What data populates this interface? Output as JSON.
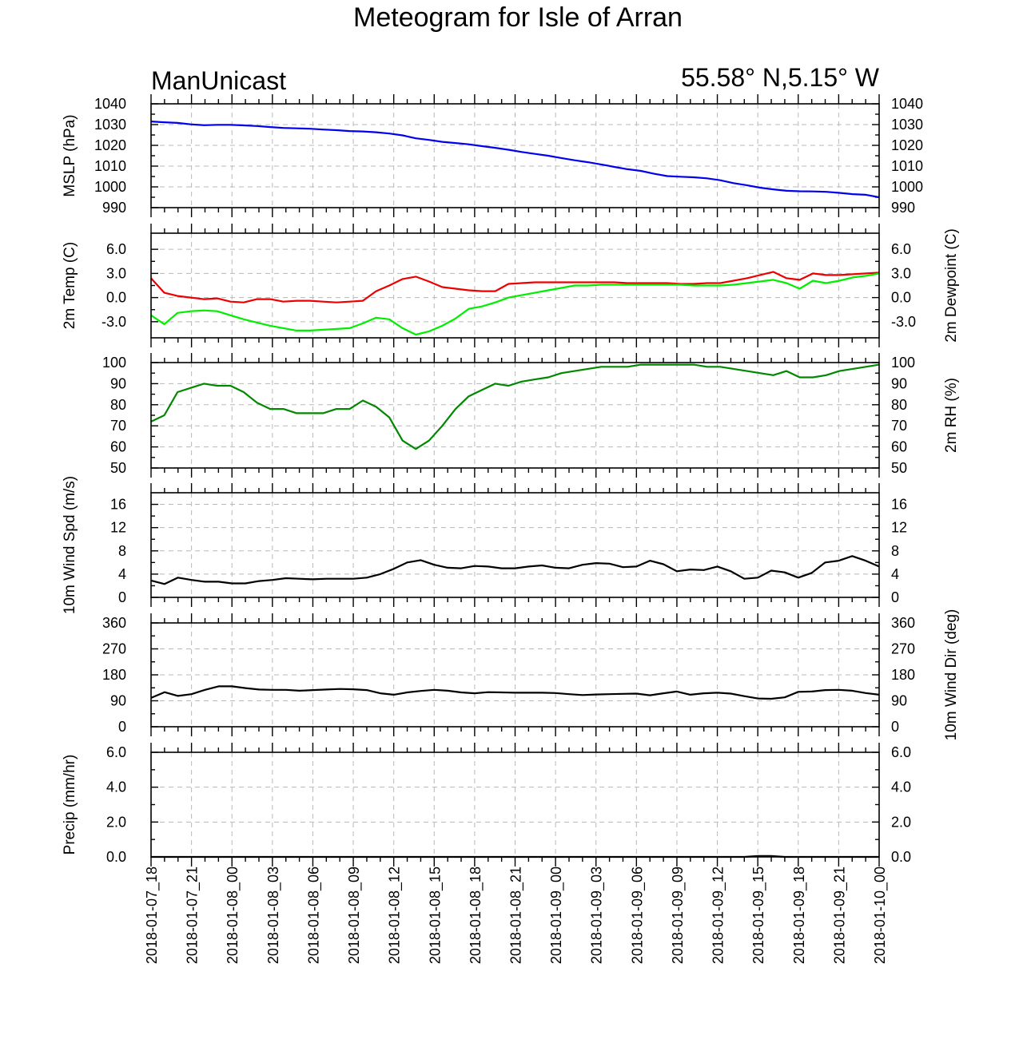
{
  "header": {
    "title": "Meteogram for Isle of Arran",
    "source": "ManUnicast",
    "location": "55.58° N,5.15° W"
  },
  "chart_data": [
    {
      "type": "line",
      "ylabel": "MSLP (hPa)",
      "ylabel_right": "",
      "ylim": [
        990,
        1040
      ],
      "yticks": [
        990,
        1000,
        1010,
        1020,
        1030,
        1040
      ],
      "ytick_labels": [
        "990",
        "1000",
        "1010",
        "1020",
        "1030",
        "1040"
      ],
      "series": [
        {
          "color": "#0000ee",
          "values": [
            1031.5,
            1031.1,
            1030.8,
            1030.1,
            1029.7,
            1029.9,
            1029.9,
            1029.6,
            1029.3,
            1028.8,
            1028.4,
            1028.2,
            1028.0,
            1027.6,
            1027.3,
            1026.9,
            1026.7,
            1026.3,
            1025.7,
            1024.8,
            1023.4,
            1022.6,
            1021.7,
            1021.1,
            1020.5,
            1019.6,
            1018.8,
            1017.9,
            1016.8,
            1015.9,
            1015.0,
            1013.9,
            1012.8,
            1011.9,
            1010.8,
            1009.6,
            1008.5,
            1007.7,
            1006.3,
            1005.2,
            1004.9,
            1004.6,
            1004.1,
            1003.2,
            1001.8,
            1000.8,
            999.6,
            998.8,
            998.1,
            997.9,
            997.8,
            997.6,
            997.1,
            996.5,
            996.2,
            995.0
          ]
        }
      ]
    },
    {
      "type": "line",
      "ylabel": "2m Temp (C)",
      "ylabel_right": "2m Dewpoint (C)",
      "ylim": [
        -5,
        8
      ],
      "yticks": [
        -3,
        0,
        3,
        6
      ],
      "ytick_labels": [
        "-3.0",
        "0.0",
        "3.0",
        "6.0"
      ],
      "series": [
        {
          "color": "#ee0000",
          "values": [
            2.4,
            0.6,
            0.2,
            0.0,
            -0.2,
            -0.1,
            -0.5,
            -0.6,
            -0.2,
            -0.2,
            -0.5,
            -0.4,
            -0.4,
            -0.5,
            -0.6,
            -0.5,
            -0.4,
            0.8,
            1.5,
            2.3,
            2.6,
            2.0,
            1.3,
            1.1,
            0.9,
            0.8,
            0.8,
            1.7,
            1.8,
            1.9,
            1.9,
            1.9,
            1.9,
            1.9,
            1.9,
            1.9,
            1.8,
            1.8,
            1.8,
            1.8,
            1.7,
            1.7,
            1.8,
            1.8,
            2.1,
            2.4,
            2.8,
            3.2,
            2.4,
            2.2,
            3.0,
            2.8,
            2.8,
            2.9,
            3.0,
            3.1
          ]
        },
        {
          "color": "#00ee00",
          "values": [
            -2.2,
            -3.3,
            -1.9,
            -1.7,
            -1.6,
            -1.7,
            -2.2,
            -2.7,
            -3.1,
            -3.5,
            -3.8,
            -4.1,
            -4.1,
            -4.0,
            -3.9,
            -3.8,
            -3.2,
            -2.5,
            -2.7,
            -3.8,
            -4.6,
            -4.2,
            -3.5,
            -2.6,
            -1.4,
            -1.1,
            -0.6,
            0.0,
            0.3,
            0.6,
            0.9,
            1.2,
            1.5,
            1.5,
            1.6,
            1.6,
            1.6,
            1.6,
            1.6,
            1.6,
            1.6,
            1.5,
            1.5,
            1.5,
            1.6,
            1.8,
            2.0,
            2.2,
            1.8,
            1.1,
            2.1,
            1.8,
            2.1,
            2.5,
            2.7,
            3.0
          ]
        }
      ]
    },
    {
      "type": "line",
      "ylabel": "",
      "ylabel_right": "2m RH (%)",
      "ylim": [
        50,
        100
      ],
      "yticks": [
        50,
        60,
        70,
        80,
        90,
        100
      ],
      "ytick_labels": [
        "50",
        "60",
        "70",
        "80",
        "90",
        "100"
      ],
      "series": [
        {
          "color": "#008800",
          "values": [
            72,
            75,
            86,
            88,
            90,
            89,
            89,
            86,
            81,
            78,
            78,
            76,
            76,
            76,
            78,
            78,
            82,
            79,
            74,
            63,
            59,
            63,
            70,
            78,
            84,
            87,
            90,
            89,
            91,
            92,
            93,
            95,
            96,
            97,
            98,
            98,
            98,
            99,
            99,
            99,
            99,
            99,
            98,
            98,
            97,
            96,
            95,
            94,
            96,
            93,
            93,
            94,
            96,
            97,
            98,
            99
          ]
        }
      ]
    },
    {
      "type": "line",
      "ylabel": "10m Wind Spd (m/s)",
      "ylabel_right": "",
      "ylim": [
        0,
        18
      ],
      "yticks": [
        0,
        4,
        8,
        12,
        16
      ],
      "ytick_labels": [
        "0",
        "4",
        "8",
        "12",
        "16"
      ],
      "series": [
        {
          "color": "#000000",
          "values": [
            2.9,
            2.3,
            3.4,
            3.0,
            2.7,
            2.7,
            2.4,
            2.4,
            2.8,
            3.0,
            3.3,
            3.2,
            3.1,
            3.2,
            3.2,
            3.2,
            3.4,
            4.0,
            4.9,
            6.0,
            6.4,
            5.6,
            5.1,
            5.0,
            5.4,
            5.3,
            5.0,
            5.0,
            5.3,
            5.5,
            5.1,
            5.0,
            5.6,
            5.9,
            5.8,
            5.2,
            5.3,
            6.3,
            5.7,
            4.5,
            4.8,
            4.7,
            5.3,
            4.5,
            3.2,
            3.4,
            4.6,
            4.3,
            3.4,
            4.2,
            6.0,
            6.3,
            7.1,
            6.3,
            5.3
          ]
        }
      ]
    },
    {
      "type": "line",
      "ylabel": "",
      "ylabel_right": "10m Wind Dir (deg)",
      "ylim": [
        0,
        360
      ],
      "yticks": [
        0,
        90,
        180,
        270,
        360
      ],
      "ytick_labels": [
        "0",
        "90",
        "180",
        "270",
        "360"
      ],
      "series": [
        {
          "color": "#000000",
          "values": [
            100,
            120,
            107,
            113,
            128,
            140,
            140,
            134,
            129,
            128,
            128,
            125,
            127,
            129,
            131,
            130,
            127,
            116,
            111,
            119,
            124,
            128,
            125,
            119,
            116,
            120,
            119,
            118,
            118,
            118,
            117,
            113,
            110,
            112,
            113,
            114,
            115,
            109,
            116,
            122,
            111,
            116,
            118,
            115,
            106,
            98,
            97,
            102,
            121,
            122,
            127,
            128,
            125,
            117,
            111
          ]
        }
      ]
    },
    {
      "type": "line",
      "ylabel": "Precip (mm/hr)",
      "ylabel_right": "",
      "ylim": [
        0,
        6
      ],
      "yticks": [
        0,
        2,
        4,
        6
      ],
      "ytick_labels": [
        "0.0",
        "2.0",
        "4.0",
        "6.0"
      ],
      "series": [
        {
          "color": "#000000",
          "values": [
            0,
            0,
            0,
            0,
            0,
            0,
            0,
            0,
            0,
            0,
            0,
            0,
            0,
            0,
            0,
            0,
            0,
            0,
            0,
            0,
            0,
            0,
            0,
            0,
            0,
            0,
            0,
            0,
            0,
            0,
            0,
            0,
            0,
            0,
            0,
            0,
            0,
            0,
            0,
            0,
            0,
            0,
            0,
            0,
            0,
            0.05,
            0.05,
            0,
            0,
            0,
            0,
            0,
            0,
            0,
            0
          ]
        }
      ]
    }
  ],
  "xaxis": {
    "tick_labels": [
      "2018-01-07_18",
      "2018-01-07_21",
      "2018-01-08_00",
      "2018-01-08_03",
      "2018-01-08_06",
      "2018-01-08_09",
      "2018-01-08_12",
      "2018-01-08_15",
      "2018-01-08_18",
      "2018-01-08_21",
      "2018-01-09_00",
      "2018-01-09_03",
      "2018-01-09_06",
      "2018-01-09_09",
      "2018-01-09_12",
      "2018-01-09_15",
      "2018-01-09_18",
      "2018-01-09_21",
      "2018-01-10_00"
    ]
  }
}
